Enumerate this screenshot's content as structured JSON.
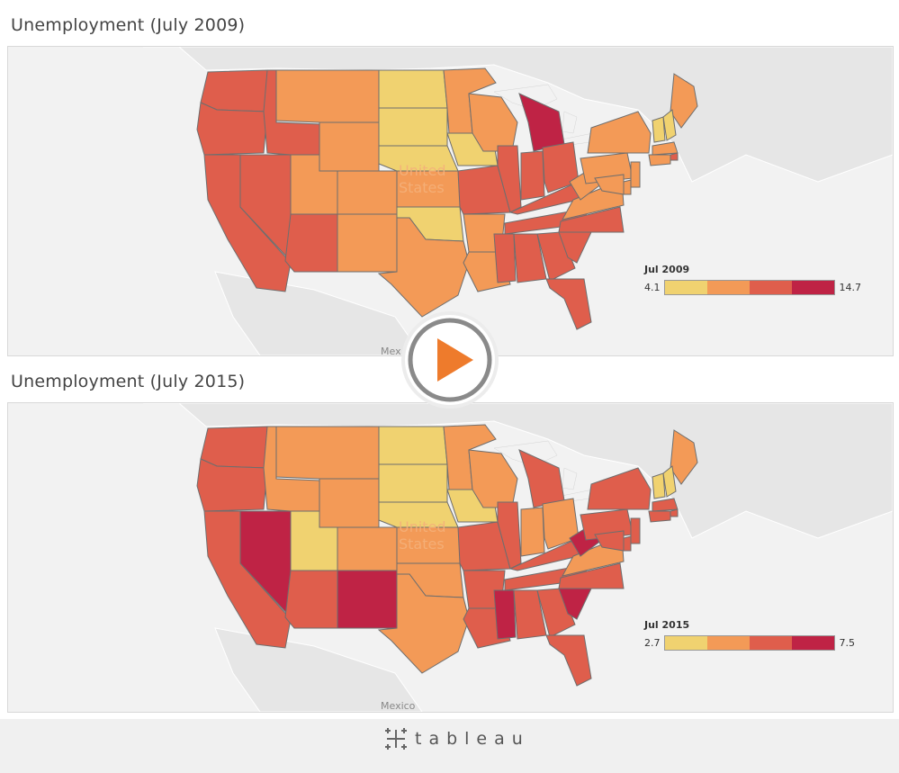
{
  "maps": [
    {
      "title": "Unemployment (July 2009)",
      "legend": {
        "title": "Jul 2009",
        "min": "4.1",
        "max": "14.7",
        "colors": [
          "#f0d270",
          "#f39a57",
          "#df5e4c",
          "#bf2345"
        ]
      },
      "country_label_line1": "United",
      "country_label_line2": "States",
      "neighbor_label": "Mex",
      "state_levels": {
        "WA": 2,
        "OR": 2,
        "CA": 2,
        "NV": 2,
        "ID": 2,
        "MT": 1,
        "WY": 1,
        "UT": 1,
        "AZ": 2,
        "CO": 1,
        "NM": 1,
        "ND": 0,
        "SD": 0,
        "NE": 0,
        "KS": 1,
        "OK": 0,
        "TX": 1,
        "MN": 1,
        "IA": 0,
        "MO": 2,
        "AR": 1,
        "LA": 1,
        "WI": 1,
        "IL": 2,
        "MI": 3,
        "IN": 2,
        "OH": 2,
        "KY": 2,
        "TN": 2,
        "MS": 2,
        "AL": 2,
        "GA": 2,
        "FL": 2,
        "SC": 2,
        "NC": 2,
        "VA": 1,
        "WV": 1,
        "PA": 1,
        "NY": 1,
        "ME": 1,
        "NH": 0,
        "VT": 0,
        "MA": 1,
        "RI": 2,
        "CT": 1,
        "NJ": 1,
        "DE": 1,
        "MD": 1
      }
    },
    {
      "title": "Unemployment (July 2015)",
      "legend": {
        "title": "Jul 2015",
        "min": "2.7",
        "max": "7.5",
        "colors": [
          "#f0d270",
          "#f39a57",
          "#df5e4c",
          "#bf2345"
        ]
      },
      "country_label_line1": "United",
      "country_label_line2": "States",
      "neighbor_label": "Mexico",
      "state_levels": {
        "WA": 2,
        "OR": 2,
        "CA": 2,
        "NV": 3,
        "ID": 1,
        "MT": 1,
        "WY": 1,
        "UT": 0,
        "AZ": 2,
        "CO": 1,
        "NM": 3,
        "ND": 0,
        "SD": 0,
        "NE": 0,
        "KS": 1,
        "OK": 1,
        "TX": 1,
        "MN": 1,
        "IA": 0,
        "MO": 2,
        "AR": 2,
        "LA": 2,
        "WI": 1,
        "IL": 2,
        "MI": 2,
        "IN": 1,
        "OH": 1,
        "KY": 2,
        "TN": 2,
        "MS": 3,
        "AL": 2,
        "GA": 2,
        "FL": 2,
        "SC": 3,
        "NC": 2,
        "VA": 1,
        "WV": 3,
        "PA": 2,
        "NY": 2,
        "ME": 1,
        "NH": 0,
        "VT": 0,
        "MA": 2,
        "RI": 2,
        "CT": 2,
        "NJ": 2,
        "DE": 2,
        "MD": 2
      }
    }
  ],
  "footer": {
    "brand": "tableau"
  }
}
